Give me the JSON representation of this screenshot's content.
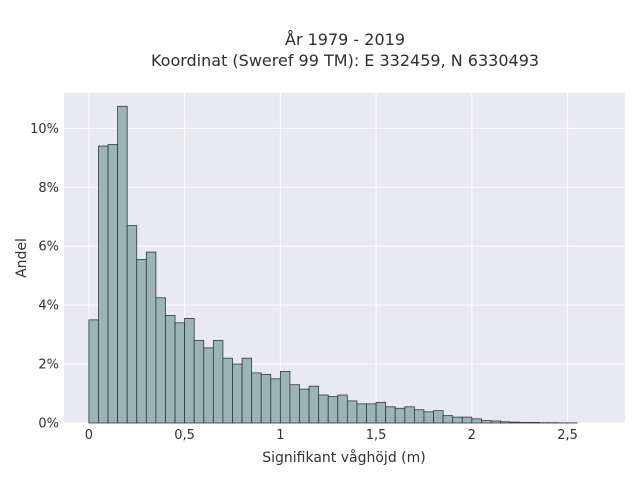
{
  "chart_data": {
    "type": "histogram",
    "title_lines": [
      "År 1979 - 2019",
      "Koordinat (Sweref 99 TM): E 332459, N 6330493"
    ],
    "xlabel": "Signifikant våghöjd (m)",
    "ylabel": "Andel",
    "x_ticks": [
      0,
      0.5,
      1,
      1.5,
      2,
      2.5
    ],
    "x_tick_labels": [
      "0",
      "0,5",
      "1",
      "1,5",
      "2",
      "2,5"
    ],
    "y_ticks": [
      0,
      2,
      4,
      6,
      8,
      10
    ],
    "y_tick_labels": [
      "0%",
      "2%",
      "4%",
      "6%",
      "8%",
      "10%"
    ],
    "xlim": [
      -0.13,
      2.8
    ],
    "ylim": [
      0,
      11.2
    ],
    "bin_start": 0.0,
    "bin_width": 0.05,
    "values": [
      3.5,
      9.4,
      9.45,
      10.75,
      6.7,
      5.55,
      5.8,
      4.25,
      3.65,
      3.4,
      3.55,
      2.8,
      2.55,
      2.8,
      2.2,
      2.0,
      2.2,
      1.7,
      1.65,
      1.5,
      1.75,
      1.3,
      1.15,
      1.25,
      0.95,
      0.9,
      0.95,
      0.75,
      0.65,
      0.65,
      0.7,
      0.55,
      0.5,
      0.55,
      0.45,
      0.38,
      0.42,
      0.25,
      0.2,
      0.2,
      0.14,
      0.08,
      0.07,
      0.04,
      0.03,
      0.02,
      0.02,
      0.01,
      0.01,
      0.005,
      0.003
    ],
    "grid": true,
    "colors": {
      "bar_fill": "#9bb5b4",
      "bar_edge": "#2f3a3a",
      "plot_background": "#e9e9f1",
      "grid": "#ffffff"
    }
  }
}
